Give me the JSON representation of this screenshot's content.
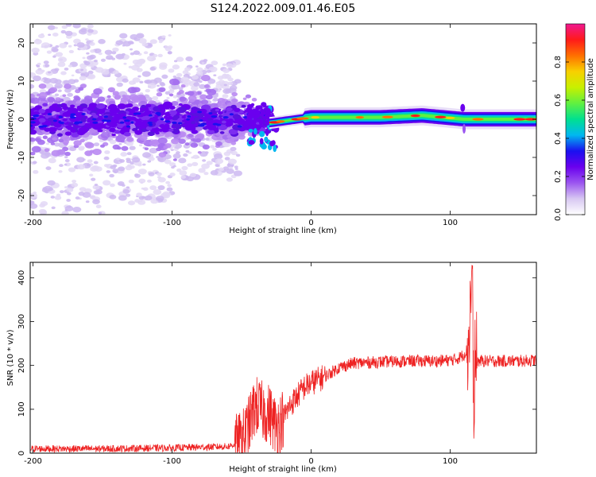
{
  "title": "S124.2022.009.01.46.E05",
  "chart_data": [
    {
      "type": "heatmap",
      "xlabel": "Height of straight line (km)",
      "ylabel": "Frequency (Hz)",
      "xlim": [
        -202,
        162
      ],
      "ylim": [
        -25,
        25
      ],
      "xticks": [
        -200,
        -100,
        0,
        100
      ],
      "xtick_labels": [
        "-200",
        "-100",
        "0",
        "100"
      ],
      "yticks": [
        -20,
        -10,
        0,
        10,
        20
      ],
      "ytick_labels": [
        "-20",
        "-10",
        "0",
        "10",
        "20"
      ],
      "colorbar": {
        "label": "Normalized spectral amplitude",
        "range": [
          0,
          1
        ],
        "ticks": [
          0.0,
          0.2,
          0.4,
          0.6,
          0.8
        ],
        "tick_labels": [
          "0.0",
          "0.2",
          "0.4",
          "0.6",
          "0.8"
        ],
        "colors": [
          "#ffffff",
          "#d8c8f2",
          "#9b55f0",
          "#6a00ee",
          "#1a10f0",
          "#00b8f0",
          "#00e090",
          "#60f040",
          "#c8f000",
          "#f8d000",
          "#ff7000",
          "#ff1a1a",
          "#f01890"
        ]
      },
      "signal_band": {
        "description_x": [
          -202,
          -60,
          -30,
          -10,
          0,
          50,
          80,
          110,
          162
        ],
        "center_hz": [
          0,
          0,
          -1,
          0,
          0.5,
          0.5,
          1,
          0,
          0
        ]
      }
    },
    {
      "type": "line",
      "xlabel": "Height of straight line (km)",
      "ylabel": "SNR (10 * v/v)",
      "xlim": [
        -202,
        162
      ],
      "ylim": [
        0,
        435
      ],
      "xticks": [
        -200,
        -100,
        0,
        100
      ],
      "xtick_labels": [
        "-200",
        "-100",
        "0",
        "100"
      ],
      "yticks": [
        0,
        100,
        200,
        300,
        400
      ],
      "ytick_labels": [
        "0",
        "100",
        "200",
        "300",
        "400"
      ],
      "color": "#ee2222",
      "x": [
        -202,
        -150,
        -100,
        -60,
        -50,
        -45,
        -40,
        -35,
        -30,
        -25,
        -20,
        -15,
        -10,
        -5,
        0,
        10,
        20,
        30,
        50,
        70,
        90,
        100,
        105,
        110,
        113,
        116,
        117,
        118,
        120,
        130,
        150,
        162
      ],
      "y": [
        10,
        10,
        12,
        15,
        25,
        60,
        110,
        95,
        90,
        60,
        80,
        110,
        130,
        150,
        160,
        175,
        195,
        205,
        208,
        210,
        210,
        212,
        215,
        225,
        240,
        420,
        80,
        200,
        210,
        210,
        210,
        212
      ]
    }
  ]
}
